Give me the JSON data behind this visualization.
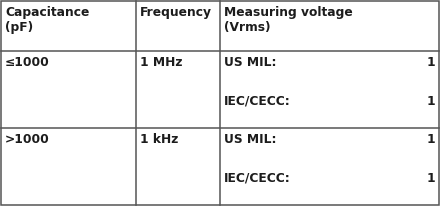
{
  "col_headers": [
    "Capacitance\n(pF)",
    "Frequency",
    "Measuring voltage\n(Vrms)"
  ],
  "rows": [
    {
      "cap": "≤1000",
      "freq": "1 MHz",
      "mil": "US MIL:",
      "mil_val": "1",
      "iec": "IEC/CECC:",
      "iec_val": "1"
    },
    {
      "cap": ">1000",
      "freq": "1 kHz",
      "mil": "US MIL:",
      "mil_val": "1",
      "iec": "IEC/CECC:",
      "iec_val": "1"
    }
  ],
  "bg_color": "#ffffff",
  "border_color": "#555555",
  "text_color": "#1c1c1c",
  "font_size": 8.8,
  "col_props": [
    0.308,
    0.192,
    0.5
  ],
  "lw": 1.1
}
